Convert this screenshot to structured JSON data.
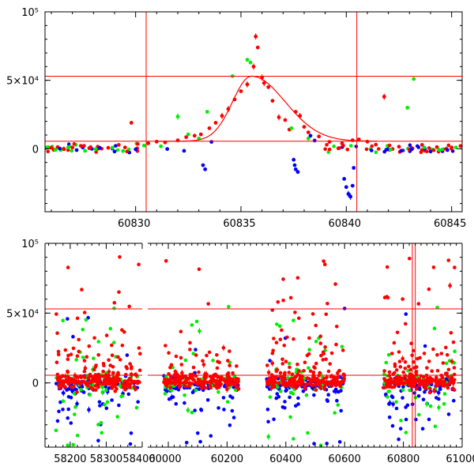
{
  "chart_data": [
    {
      "id": "top",
      "type": "scatter",
      "title": "",
      "xlabel": "",
      "ylabel": "",
      "xlim": [
        60825.7,
        60845.5
      ],
      "ylim": [
        -46000,
        100000
      ],
      "x_ticks": [
        60830,
        60835,
        60840,
        60845
      ],
      "x_tick_labels": [
        "60830",
        "60835",
        "60840",
        "60845"
      ],
      "y_ticks": [
        0,
        50000,
        100000
      ],
      "y_tick_labels": [
        "0",
        "5×10⁴",
        "10⁵"
      ],
      "hlines": [
        53000,
        5500
      ],
      "vlines": [
        60830.5,
        60840.5
      ],
      "colors": {
        "red": "#ff0000",
        "green": "#00ee00",
        "blue": "#0000ff"
      },
      "model_curve": {
        "t0": 60835.5,
        "peak": 53000,
        "baseline": 5500,
        "tau_rise": 0.9,
        "tau_fall": 1.6
      },
      "series": [
        {
          "name": "red",
          "color": "#ff0000",
          "points": [
            [
              60826.0,
              800
            ],
            [
              60826.3,
              1200
            ],
            [
              60826.6,
              -300
            ],
            [
              60827.0,
              900
            ],
            [
              60827.4,
              2100
            ],
            [
              60827.8,
              400
            ],
            [
              60828.2,
              1500
            ],
            [
              60828.7,
              700
            ],
            [
              60829.2,
              2800
            ],
            [
              60829.5,
              1000
            ],
            [
              60829.8,
              19000
            ],
            [
              60830.1,
              3500
            ],
            [
              60830.6,
              4000
            ],
            [
              60831.0,
              5200
            ],
            [
              60831.4,
              4600
            ],
            [
              60832.0,
              6100
            ],
            [
              60832.4,
              8500
            ],
            [
              60832.8,
              9500
            ],
            [
              60833.1,
              10500
            ],
            [
              60833.5,
              15000
            ],
            [
              60833.8,
              19000
            ],
            [
              60834.1,
              24000
            ],
            [
              60834.4,
              29000
            ],
            [
              60834.7,
              36000
            ],
            [
              60835.0,
              42000
            ],
            [
              60835.3,
              47000
            ],
            [
              60835.6,
              60000
            ],
            [
              60835.7,
              82000
            ],
            [
              60835.8,
              74000
            ],
            [
              60836.0,
              52000
            ],
            [
              60836.1,
              48000
            ],
            [
              60836.3,
              45000
            ],
            [
              60836.5,
              35000
            ],
            [
              60836.8,
              23000
            ],
            [
              60837.1,
              21000
            ],
            [
              60837.3,
              14000
            ],
            [
              60837.6,
              27000
            ],
            [
              60837.8,
              24000
            ],
            [
              60838.0,
              16000
            ],
            [
              60838.2,
              12000
            ],
            [
              60838.7,
              9000
            ],
            [
              60839.2,
              5000
            ],
            [
              60839.8,
              4000
            ],
            [
              60840.3,
              6200
            ],
            [
              60840.6,
              6800
            ],
            [
              60841.0,
              5200
            ],
            [
              60841.4,
              3000
            ],
            [
              60841.8,
              38000
            ],
            [
              60842.5,
              1500
            ],
            [
              60843.0,
              -500
            ],
            [
              60843.6,
              2800
            ],
            [
              60844.3,
              1200
            ],
            [
              60845.0,
              900
            ]
          ]
        },
        {
          "name": "green",
          "color": "#00ee00",
          "points": [
            [
              60826.2,
              -800
            ],
            [
              60826.8,
              1000
            ],
            [
              60827.6,
              -1500
            ],
            [
              60828.1,
              -300
            ],
            [
              60828.9,
              800
            ],
            [
              60829.4,
              -1700
            ],
            [
              60830.4,
              2300
            ],
            [
              60831.2,
              1800
            ],
            [
              60832.0,
              23500
            ],
            [
              60832.5,
              10500
            ],
            [
              60833.0,
              7500
            ],
            [
              60833.4,
              27000
            ],
            [
              60834.6,
              53000
            ],
            [
              60835.3,
              65000
            ],
            [
              60835.45,
              63000
            ],
            [
              60837.4,
              15000
            ],
            [
              60838.2,
              7500
            ],
            [
              60842.1,
              -600
            ],
            [
              60842.9,
              30000
            ],
            [
              60843.2,
              51000
            ],
            [
              60843.7,
              1000
            ],
            [
              60844.4,
              -800
            ],
            [
              60845.2,
              1000
            ]
          ]
        },
        {
          "name": "blue",
          "color": "#0000ff",
          "points": [
            [
              60826.4,
              100
            ],
            [
              60827.2,
              -1000
            ],
            [
              60828.3,
              600
            ],
            [
              60829.0,
              -2000
            ],
            [
              60830.0,
              -400
            ],
            [
              60831.5,
              -200
            ],
            [
              60832.3,
              -1500
            ],
            [
              60833.2,
              -12000
            ],
            [
              60833.3,
              -15000
            ],
            [
              60833.6,
              5000
            ],
            [
              60837.5,
              -8000
            ],
            [
              60837.55,
              -12000
            ],
            [
              60837.6,
              -15000
            ],
            [
              60837.7,
              -17000
            ],
            [
              60838.3,
              9500
            ],
            [
              60838.5,
              6000
            ],
            [
              60839.9,
              -22000
            ],
            [
              60840.0,
              -28000
            ],
            [
              60840.1,
              -33000
            ],
            [
              60840.2,
              -35000
            ],
            [
              60840.3,
              -27000
            ],
            [
              60840.35,
              -14000
            ],
            [
              60841.2,
              -1200
            ],
            [
              60841.9,
              -700
            ],
            [
              60842.6,
              -1500
            ],
            [
              60843.1,
              -400
            ],
            [
              60844.0,
              -2000
            ],
            [
              60844.8,
              -1000
            ]
          ]
        }
      ]
    },
    {
      "id": "bottom",
      "type": "scatter",
      "title": "",
      "xlabel": "",
      "ylabel": "",
      "xlim": [
        58130,
        61000
      ],
      "ylim": [
        -46000,
        100000
      ],
      "x_break": {
        "from": 58400,
        "to": 59930,
        "gap_label": "axis break"
      },
      "x_ticks": [
        58200,
        58300,
        58400,
        60000,
        60200,
        60400,
        60600,
        60800,
        61000
      ],
      "x_tick_labels": [
        "58200",
        "58300",
        "58400",
        "60000",
        "60200",
        "60400",
        "60600",
        "60800",
        "61000"
      ],
      "y_ticks": [
        0,
        50000,
        100000
      ],
      "y_tick_labels": [
        "0",
        "5×10⁴",
        "10⁵"
      ],
      "hlines": [
        53000,
        5500
      ],
      "vlines": [
        60830.5,
        60840.5
      ],
      "seasons": [
        {
          "start": 58160,
          "end": 58395,
          "center": 58285
        },
        {
          "start": 59985,
          "end": 60240,
          "center": 60125
        },
        {
          "start": 60335,
          "end": 60600,
          "center": 60475
        },
        {
          "start": 60730,
          "end": 60975,
          "center": 60855
        }
      ],
      "series": [
        {
          "name": "red",
          "color": "#ff0000",
          "count": 900
        },
        {
          "name": "green",
          "color": "#00ee00",
          "count": 260
        },
        {
          "name": "blue",
          "color": "#0000ff",
          "count": 420
        }
      ]
    }
  ]
}
